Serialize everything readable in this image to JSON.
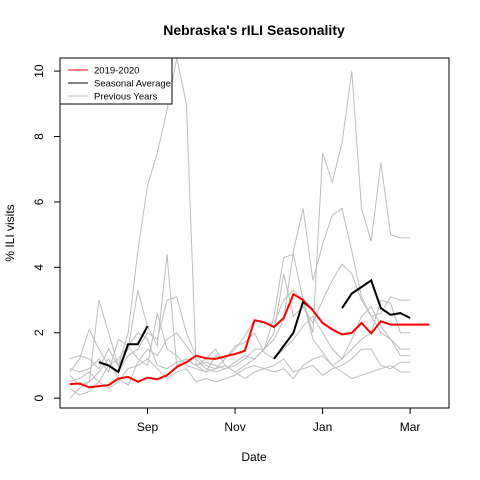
{
  "chart_data": {
    "type": "line",
    "title": "Nebraska's rILI Seasonality",
    "xlabel": "Date",
    "ylabel": "% ILI visits",
    "xlim": [
      0,
      40
    ],
    "ylim": [
      -0.3,
      10.4
    ],
    "x_ticks": [
      {
        "x": 9,
        "label": "Sep"
      },
      {
        "x": 18,
        "label": "Nov"
      },
      {
        "x": 27,
        "label": "Jan"
      },
      {
        "x": 36,
        "label": "Mar"
      }
    ],
    "y_ticks": [
      0,
      2,
      4,
      6,
      8,
      10
    ],
    "legend": {
      "placement": "top-left",
      "entries": [
        {
          "label": "2019-2020",
          "color": "#ff0000"
        },
        {
          "label": "Seasonal Average",
          "color": "#000000"
        },
        {
          "label": "Previous Years",
          "color": "#bebebe"
        }
      ]
    },
    "current": {
      "name": "2019-2020",
      "color": "#ff0000",
      "x": [
        1,
        2,
        3,
        4,
        5,
        6,
        7,
        8,
        9,
        10,
        11,
        12,
        13,
        14,
        15,
        16,
        17,
        18,
        19,
        20,
        21,
        22,
        23,
        24,
        25,
        26,
        27,
        28,
        29,
        30,
        31,
        32,
        33,
        34,
        35,
        36,
        37,
        38
      ],
      "y": [
        0.43,
        0.45,
        0.33,
        0.37,
        0.4,
        0.6,
        0.65,
        0.5,
        0.63,
        0.58,
        0.7,
        0.95,
        1.1,
        1.3,
        1.22,
        1.2,
        1.28,
        1.35,
        1.45,
        2.38,
        2.32,
        2.18,
        2.45,
        3.18,
        3.0,
        2.68,
        2.3,
        2.1,
        1.95,
        2.0,
        2.3,
        1.98,
        2.35,
        2.25,
        2.25,
        2.25,
        2.25,
        2.25
      ]
    },
    "average": {
      "name": "Seasonal Average",
      "color": "#000000",
      "segments": [
        {
          "x": [
            4,
            5,
            6,
            7,
            8,
            9
          ],
          "y": [
            1.1,
            1.0,
            0.8,
            1.65,
            1.65,
            2.2
          ]
        },
        {
          "x": [
            22,
            23,
            24,
            25,
            26
          ],
          "y": [
            1.2,
            1.6,
            2.0,
            2.95,
            2.7
          ]
        },
        {
          "x": [
            29,
            30,
            31,
            32,
            33,
            34,
            35,
            36
          ],
          "y": [
            2.75,
            3.2,
            3.4,
            3.6,
            2.75,
            2.55,
            2.6,
            2.45
          ]
        }
      ]
    },
    "previous_years": {
      "color": "#bebebe",
      "series": [
        {
          "x": [
            1,
            2,
            3,
            4,
            5,
            6,
            7,
            8,
            9,
            10,
            11,
            12,
            13,
            14,
            15,
            16,
            17,
            18,
            19,
            20,
            21,
            22,
            23,
            24,
            25,
            26,
            27,
            28,
            29,
            30,
            31,
            32,
            33,
            34,
            35,
            36
          ],
          "y": [
            0.7,
            0.4,
            0.5,
            3.0,
            2.0,
            1.0,
            2.0,
            4.5,
            6.5,
            7.5,
            8.8,
            10.4,
            9.0,
            1.0,
            1.2,
            1.5,
            1.0,
            0.8,
            1.0,
            1.2,
            1.5,
            2.5,
            4.3,
            4.4,
            3.0,
            2.0,
            7.5,
            6.6,
            7.8,
            10.0,
            5.8,
            4.8,
            7.2,
            5.0,
            4.9,
            4.9
          ]
        },
        {
          "x": [
            1,
            2,
            3,
            4,
            5,
            6,
            7,
            8,
            9,
            10,
            11,
            12,
            13,
            14,
            15,
            16,
            17,
            18,
            19,
            20,
            21,
            22,
            23,
            24,
            25,
            26,
            27,
            28,
            29,
            30,
            31,
            32,
            33,
            34,
            35,
            36
          ],
          "y": [
            1.2,
            1.3,
            1.2,
            0.9,
            1.5,
            1.0,
            1.5,
            3.3,
            2.2,
            1.6,
            4.4,
            1.0,
            1.2,
            1.0,
            1.1,
            1.0,
            0.9,
            1.1,
            1.3,
            1.2,
            1.5,
            1.8,
            2.4,
            4.5,
            5.8,
            3.6,
            4.7,
            5.6,
            5.8,
            4.5,
            3.1,
            2.5,
            2.6,
            3.1,
            3.0,
            3.0
          ]
        },
        {
          "x": [
            1,
            2,
            3,
            4,
            5,
            6,
            7,
            8,
            9,
            10,
            11,
            12,
            13,
            14,
            15,
            16,
            17,
            18,
            19,
            20,
            21,
            22,
            23,
            24,
            25,
            26,
            27,
            28,
            29,
            30,
            31,
            32,
            33,
            34,
            35,
            36
          ],
          "y": [
            0.8,
            1.2,
            2.1,
            1.5,
            1.0,
            0.8,
            1.3,
            1.5,
            2.0,
            1.8,
            3.0,
            3.1,
            2.0,
            1.3,
            1.0,
            0.9,
            1.2,
            1.5,
            1.9,
            2.4,
            2.3,
            2.3,
            3.0,
            3.3,
            3.0,
            1.8,
            1.4,
            1.0,
            1.2,
            1.5,
            1.8,
            2.0,
            3.0,
            2.9,
            2.0,
            2.0
          ]
        },
        {
          "x": [
            1,
            2,
            3,
            4,
            5,
            6,
            7,
            8,
            9,
            10,
            11,
            12,
            13,
            14,
            15,
            16,
            17,
            18,
            19,
            20,
            21,
            22,
            23,
            24,
            25,
            26,
            27,
            28,
            29,
            30,
            31,
            32,
            33,
            34,
            35,
            36
          ],
          "y": [
            0.0,
            0.3,
            0.5,
            0.8,
            1.2,
            0.6,
            0.4,
            1.1,
            1.5,
            1.3,
            1.8,
            2.0,
            1.6,
            1.2,
            0.9,
            0.8,
            0.9,
            1.0,
            1.2,
            1.5,
            1.5,
            2.0,
            3.8,
            2.5,
            2.8,
            2.3,
            3.0,
            3.6,
            4.1,
            3.8,
            3.0,
            2.5,
            2.0,
            1.8,
            1.5,
            1.5
          ]
        },
        {
          "x": [
            1,
            2,
            3,
            4,
            5,
            6,
            7,
            8,
            9,
            10,
            11,
            12,
            13,
            14,
            15,
            16,
            17,
            18,
            19,
            20,
            21,
            22,
            23,
            24,
            25,
            26,
            27,
            28,
            29,
            30,
            31,
            32,
            33,
            34,
            35,
            36
          ],
          "y": [
            0.3,
            0.1,
            0.2,
            0.5,
            1.0,
            1.2,
            1.6,
            2.0,
            1.8,
            1.0,
            0.9,
            1.1,
            1.2,
            1.0,
            0.8,
            0.9,
            1.0,
            0.8,
            0.6,
            0.8,
            0.9,
            1.0,
            1.2,
            0.8,
            0.9,
            1.0,
            0.7,
            0.9,
            1.0,
            1.2,
            1.5,
            1.5,
            1.0,
            0.9,
            1.1,
            1.1
          ]
        },
        {
          "x": [
            1,
            2,
            3,
            4,
            5,
            6,
            7,
            8,
            9,
            10,
            11,
            12,
            13,
            14,
            15,
            16,
            17,
            18,
            19,
            20,
            21,
            22,
            23,
            24,
            25,
            26,
            27,
            28,
            29,
            30,
            31,
            32,
            33,
            34,
            35,
            36
          ],
          "y": [
            0.5,
            0.6,
            0.8,
            0.5,
            0.3,
            0.5,
            0.9,
            1.0,
            1.2,
            0.9,
            0.6,
            0.8,
            0.9,
            0.5,
            0.6,
            0.5,
            0.6,
            0.7,
            0.9,
            1.0,
            0.9,
            0.8,
            0.9,
            0.6,
            1.0,
            1.2,
            1.3,
            1.0,
            0.8,
            0.6,
            0.7,
            0.8,
            0.9,
            1.0,
            0.8,
            0.8
          ]
        },
        {
          "x": [
            1,
            2,
            3,
            4,
            5,
            6,
            7,
            8,
            9,
            10,
            11,
            12,
            13,
            14,
            15,
            16,
            17,
            18,
            19,
            20,
            21,
            22,
            23,
            24,
            25,
            26,
            27,
            28,
            29,
            30,
            31,
            32,
            33,
            34,
            35,
            36
          ],
          "y": [
            0.9,
            0.8,
            0.9,
            1.2,
            0.8,
            1.8,
            1.6,
            1.2,
            1.0,
            2.6,
            1.5,
            1.3,
            1.0,
            0.9,
            0.8,
            1.3,
            1.2,
            1.6,
            1.7,
            2.0,
            1.4,
            1.2,
            1.5,
            1.8,
            2.2,
            2.5,
            2.0,
            1.5,
            1.2,
            1.8,
            2.5,
            2.8,
            2.2,
            1.8,
            1.3,
            1.3
          ]
        }
      ]
    }
  }
}
